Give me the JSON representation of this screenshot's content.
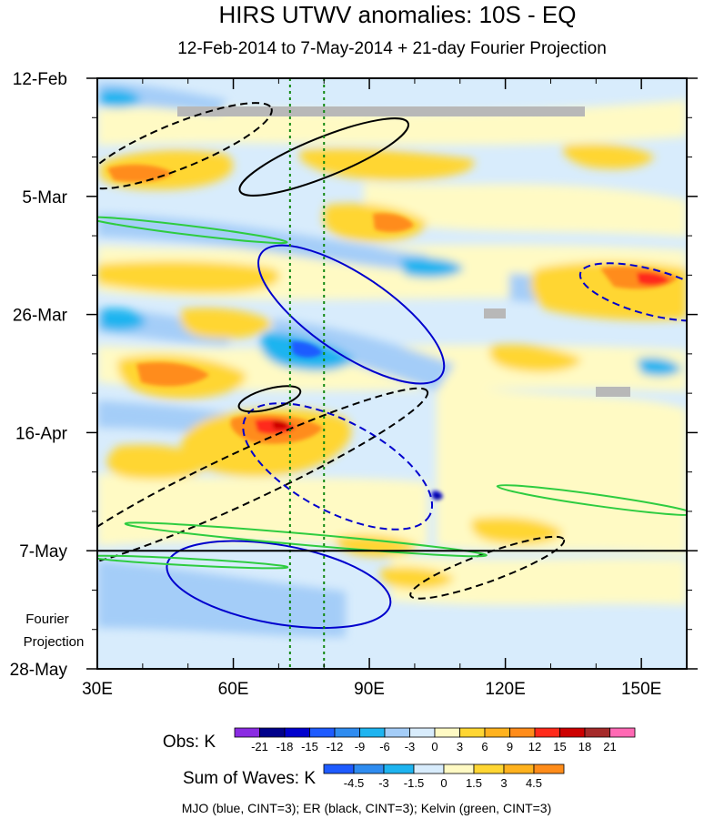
{
  "chart_data": {
    "type": "heatmap",
    "title": "HIRS UTWV anomalies: 10S - EQ",
    "subtitle": "12-Feb-2014 to 7-May-2014 + 21-day Fourier Projection",
    "x_axis": {
      "range": [
        30,
        160
      ],
      "ticks": [
        {
          "value": 30,
          "label": "30E"
        },
        {
          "value": 60,
          "label": "60E"
        },
        {
          "value": 90,
          "label": "90E"
        },
        {
          "value": 120,
          "label": "120E"
        },
        {
          "value": 150,
          "label": "150E"
        }
      ]
    },
    "y_axis": {
      "range_days": [
        0,
        105
      ],
      "ticks": [
        {
          "day": 0,
          "label": "12-Feb"
        },
        {
          "day": 21,
          "label": "5-Mar"
        },
        {
          "day": 42,
          "label": "26-Mar"
        },
        {
          "day": 63,
          "label": "16-Apr"
        },
        {
          "day": 84,
          "label": "7-May"
        },
        {
          "day": 105,
          "label": "28-May"
        }
      ]
    },
    "projection_start_day": 84,
    "projection_label": [
      "Fourier",
      "Projection"
    ],
    "reference_longitudes": [
      72.5,
      80
    ],
    "obs_colorbar": {
      "label": "Obs: K",
      "levels": [
        -21,
        -18,
        -15,
        -12,
        -9,
        -6,
        -3,
        0,
        3,
        6,
        9,
        12,
        15,
        18,
        21
      ],
      "colors": [
        "#8a2be2",
        "#00008b",
        "#0000cd",
        "#1e5bff",
        "#2f8cf0",
        "#1eb4f0",
        "#a4cdf8",
        "#d8ecfc",
        "#fffac4",
        "#ffd633",
        "#ffb21e",
        "#ff8c1a",
        "#ff2a1a",
        "#cd0000",
        "#a52a2a",
        "#ff69b4"
      ]
    },
    "waves_colorbar": {
      "label": "Sum of Waves: K",
      "levels": [
        -4.5,
        -3,
        -1.5,
        0,
        1.5,
        3,
        4.5
      ],
      "colors": [
        "#1e5bff",
        "#2f8cf0",
        "#1eb4f0",
        "#d8ecfc",
        "#fffac4",
        "#ffd633",
        "#ffb21e",
        "#ff8c1a"
      ]
    },
    "wave_contours": [
      {
        "wave": "MJO",
        "color": "#0000cd",
        "sign": "positive",
        "lon": 86,
        "day": 42,
        "rx": 24,
        "ry": 7,
        "angle": 34
      },
      {
        "wave": "MJO",
        "color": "#0000cd",
        "sign": "negative",
        "lon": 83,
        "day": 69,
        "rx": 23,
        "ry": 8,
        "angle": 28
      },
      {
        "wave": "MJO",
        "color": "#0000cd",
        "sign": "positive",
        "lon": 70,
        "day": 90,
        "rx": 25,
        "ry": 7,
        "angle": 10
      },
      {
        "wave": "MJO",
        "color": "#0000cd",
        "sign": "negative",
        "lon": 152,
        "day": 38,
        "rx": 16,
        "ry": 4,
        "angle": 15
      },
      {
        "wave": "ER",
        "color": "#000000",
        "sign": "negative",
        "lon": 48,
        "day": 12,
        "rx": 22,
        "ry": 4,
        "angle": -22
      },
      {
        "wave": "ER",
        "color": "#000000",
        "sign": "positive",
        "lon": 80,
        "day": 14,
        "rx": 20,
        "ry": 3.5,
        "angle": -22
      },
      {
        "wave": "ER",
        "color": "#000000",
        "sign": "negative",
        "lon": 62,
        "day": 71,
        "rx": 45,
        "ry": 4.5,
        "angle": -25
      },
      {
        "wave": "ER",
        "color": "#000000",
        "sign": "positive",
        "lon": 68,
        "day": 57,
        "rx": 7,
        "ry": 1.8,
        "angle": -15
      },
      {
        "wave": "ER",
        "color": "#000000",
        "sign": "negative",
        "lon": 116,
        "day": 87,
        "rx": 18,
        "ry": 2.5,
        "angle": -20
      },
      {
        "wave": "Kelvin",
        "color": "#2ecc40",
        "lon": 50,
        "day": 27,
        "rx": 22,
        "ry": 0.8,
        "angle": 7
      },
      {
        "wave": "Kelvin",
        "color": "#2ecc40",
        "lon": 76,
        "day": 82,
        "rx": 40,
        "ry": 1,
        "angle": 5
      },
      {
        "wave": "Kelvin",
        "color": "#2ecc40",
        "lon": 140,
        "day": 75,
        "rx": 22,
        "ry": 1,
        "angle": 8
      },
      {
        "wave": "Kelvin",
        "color": "#2ecc40",
        "lon": 50,
        "day": 86,
        "rx": 22,
        "ry": 0.6,
        "angle": 3
      }
    ],
    "legend_text": "MJO (blue, CINT=3); ER (black, CINT=3); Kelvin (green, CINT=3)"
  }
}
